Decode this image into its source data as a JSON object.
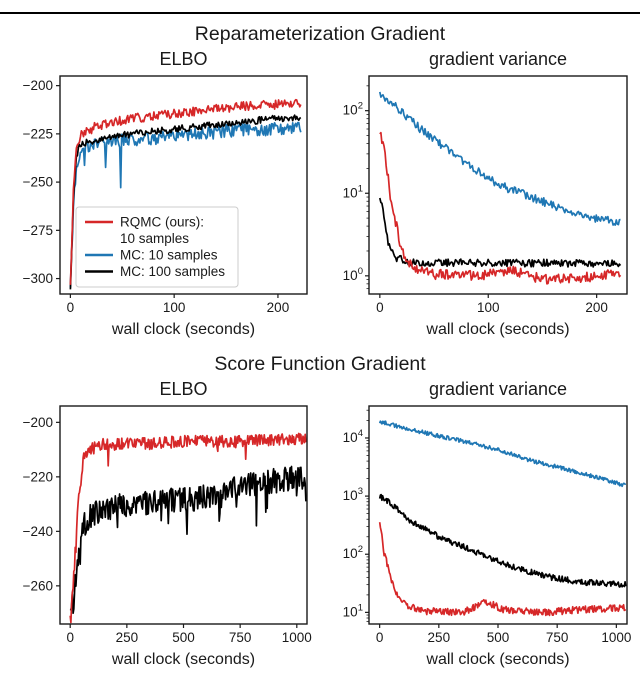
{
  "palette": {
    "red": "#d62728",
    "blue": "#1f77b4",
    "black": "#000000",
    "spine": "#1a1a1a",
    "text": "#1a1a1a",
    "legend_border": "#cccccc"
  },
  "sections": [
    {
      "title": "Reparameterization Gradient"
    },
    {
      "title": "Score Function Gradient"
    }
  ],
  "legend": {
    "entries": [
      {
        "color": "red",
        "lines": [
          "RQMC (ours):",
          "10 samples"
        ]
      },
      {
        "color": "blue",
        "lines": [
          "MC: 10 samples"
        ]
      },
      {
        "color": "black",
        "lines": [
          "MC: 100 samples"
        ]
      }
    ]
  },
  "chart_data": [
    {
      "type": "line",
      "title": "ELBO",
      "xlabel": "wall clock (seconds)",
      "ylabel": "",
      "xlim": [
        -10,
        228
      ],
      "xticks": [
        0,
        100,
        200
      ],
      "ylim": [
        -308,
        -195
      ],
      "yticks": [
        -200,
        -225,
        -250,
        -275,
        -300
      ],
      "log": false,
      "legend": true,
      "series": [
        {
          "name": "MC: 10 samples",
          "color": "blue",
          "seed": 7,
          "points": 230,
          "noise": 3.4,
          "spikes": {
            "prob": 0.012,
            "mag": -26
          },
          "trend": [
            [
              0,
              -304
            ],
            [
              3,
              -262
            ],
            [
              6,
              -240
            ],
            [
              10,
              -233
            ],
            [
              25,
              -230
            ],
            [
              60,
              -228
            ],
            [
              110,
              -226
            ],
            [
              160,
              -223
            ],
            [
              222,
              -222
            ]
          ]
        },
        {
          "name": "MC: 100 samples",
          "color": "black",
          "seed": 13,
          "points": 230,
          "noise": 1.8,
          "trend": [
            [
              0,
              -305
            ],
            [
              3,
              -258
            ],
            [
              6,
              -236
            ],
            [
              10,
              -230
            ],
            [
              25,
              -228
            ],
            [
              60,
              -225
            ],
            [
              110,
              -222
            ],
            [
              160,
              -219
            ],
            [
              222,
              -216
            ]
          ]
        },
        {
          "name": "RQMC (ours): 10 samples",
          "color": "red",
          "seed": 3,
          "points": 230,
          "noise": 2.4,
          "spikes": {
            "prob": 0.012,
            "mag": -16
          },
          "trend": [
            [
              0,
              -305
            ],
            [
              3,
              -252
            ],
            [
              6,
              -230
            ],
            [
              10,
              -226
            ],
            [
              25,
              -221
            ],
            [
              60,
              -217
            ],
            [
              110,
              -214
            ],
            [
              160,
              -211
            ],
            [
              222,
              -209
            ]
          ]
        }
      ]
    },
    {
      "type": "line",
      "title": "gradient variance",
      "xlabel": "wall clock (seconds)",
      "ylabel": "",
      "xlim": [
        -10,
        228
      ],
      "xticks": [
        0,
        100,
        200
      ],
      "ylim": [
        -0.22,
        2.42
      ],
      "yticks": [
        0,
        1,
        2
      ],
      "log": true,
      "series": [
        {
          "name": "MC: 10 samples",
          "color": "blue",
          "seed": 21,
          "points": 230,
          "noise": 0.05,
          "trend": [
            [
              0,
              2.18
            ],
            [
              15,
              2.05
            ],
            [
              40,
              1.75
            ],
            [
              70,
              1.45
            ],
            [
              110,
              1.1
            ],
            [
              150,
              0.9
            ],
            [
              190,
              0.72
            ],
            [
              222,
              0.64
            ]
          ]
        },
        {
          "name": "MC: 100 samples",
          "color": "black",
          "seed": 41,
          "points": 230,
          "noise": 0.045,
          "trend": [
            [
              0,
              0.96
            ],
            [
              4,
              0.7
            ],
            [
              8,
              0.4
            ],
            [
              15,
              0.22
            ],
            [
              30,
              0.16
            ],
            [
              222,
              0.15
            ]
          ]
        },
        {
          "name": "RQMC (ours): 10 samples",
          "color": "red",
          "seed": 31,
          "points": 230,
          "noise": 0.06,
          "trend": [
            [
              0,
              1.73
            ],
            [
              4,
              1.55
            ],
            [
              10,
              0.95
            ],
            [
              20,
              0.3
            ],
            [
              30,
              0.1
            ],
            [
              50,
              0.02
            ],
            [
              90,
              0.0
            ],
            [
              120,
              0.07
            ],
            [
              150,
              -0.04
            ],
            [
              190,
              -0.02
            ],
            [
              222,
              0.05
            ]
          ]
        }
      ]
    },
    {
      "type": "line",
      "title": "ELBO",
      "xlabel": "wall clock (seconds)",
      "ylabel": "",
      "xlim": [
        -45,
        1045
      ],
      "xticks": [
        0,
        250,
        500,
        750,
        1000
      ],
      "ylim": [
        -274,
        -194
      ],
      "yticks": [
        -200,
        -220,
        -240,
        -260
      ],
      "log": false,
      "series": [
        {
          "name": "MC: 100 samples",
          "color": "black",
          "seed": 51,
          "points": 330,
          "noise": 4.5,
          "spikes": {
            "prob": 0.09,
            "mag": -13
          },
          "trend": [
            [
              0,
              -271
            ],
            [
              15,
              -265
            ],
            [
              35,
              -248
            ],
            [
              60,
              -238
            ],
            [
              90,
              -234
            ],
            [
              150,
              -232
            ],
            [
              250,
              -230
            ],
            [
              400,
              -229
            ],
            [
              550,
              -228
            ],
            [
              700,
              -225
            ],
            [
              850,
              -222
            ],
            [
              1040,
              -220
            ]
          ]
        },
        {
          "name": "RQMC (ours): 10 samples",
          "color": "red",
          "seed": 61,
          "points": 330,
          "noise": 2.2,
          "spikes": {
            "prob": 0.02,
            "mag": -7
          },
          "trend": [
            [
              0,
              -271
            ],
            [
              15,
              -258
            ],
            [
              35,
              -228
            ],
            [
              60,
              -213
            ],
            [
              90,
              -210
            ],
            [
              150,
              -208
            ],
            [
              300,
              -208
            ],
            [
              500,
              -207
            ],
            [
              700,
              -207
            ],
            [
              1040,
              -206
            ]
          ]
        }
      ]
    },
    {
      "type": "line",
      "title": "gradient variance",
      "xlabel": "wall clock (seconds)",
      "ylabel": "",
      "xlim": [
        -45,
        1045
      ],
      "xticks": [
        0,
        250,
        500,
        750,
        1000
      ],
      "ylim": [
        0.8,
        4.55
      ],
      "yticks": [
        1,
        2,
        3,
        4
      ],
      "log": true,
      "series": [
        {
          "name": "MC: 10 samples",
          "color": "blue",
          "seed": 71,
          "points": 330,
          "noise": 0.035,
          "trend": [
            [
              0,
              4.28
            ],
            [
              80,
              4.2
            ],
            [
              200,
              4.08
            ],
            [
              350,
              3.95
            ],
            [
              500,
              3.8
            ],
            [
              650,
              3.6
            ],
            [
              800,
              3.45
            ],
            [
              1040,
              3.18
            ]
          ]
        },
        {
          "name": "MC: 100 samples",
          "color": "black",
          "seed": 81,
          "points": 330,
          "noise": 0.05,
          "trend": [
            [
              0,
              3.0
            ],
            [
              40,
              2.9
            ],
            [
              120,
              2.6
            ],
            [
              250,
              2.3
            ],
            [
              400,
              2.05
            ],
            [
              550,
              1.8
            ],
            [
              700,
              1.62
            ],
            [
              850,
              1.52
            ],
            [
              1040,
              1.48
            ]
          ]
        },
        {
          "name": "RQMC (ours): 10 samples",
          "color": "red",
          "seed": 91,
          "points": 330,
          "noise": 0.06,
          "trend": [
            [
              0,
              2.56
            ],
            [
              20,
              2.0
            ],
            [
              60,
              1.4
            ],
            [
              110,
              1.12
            ],
            [
              200,
              1.02
            ],
            [
              350,
              1.0
            ],
            [
              450,
              1.18
            ],
            [
              520,
              1.05
            ],
            [
              700,
              1.0
            ],
            [
              850,
              1.05
            ],
            [
              1040,
              1.08
            ]
          ]
        }
      ]
    }
  ]
}
